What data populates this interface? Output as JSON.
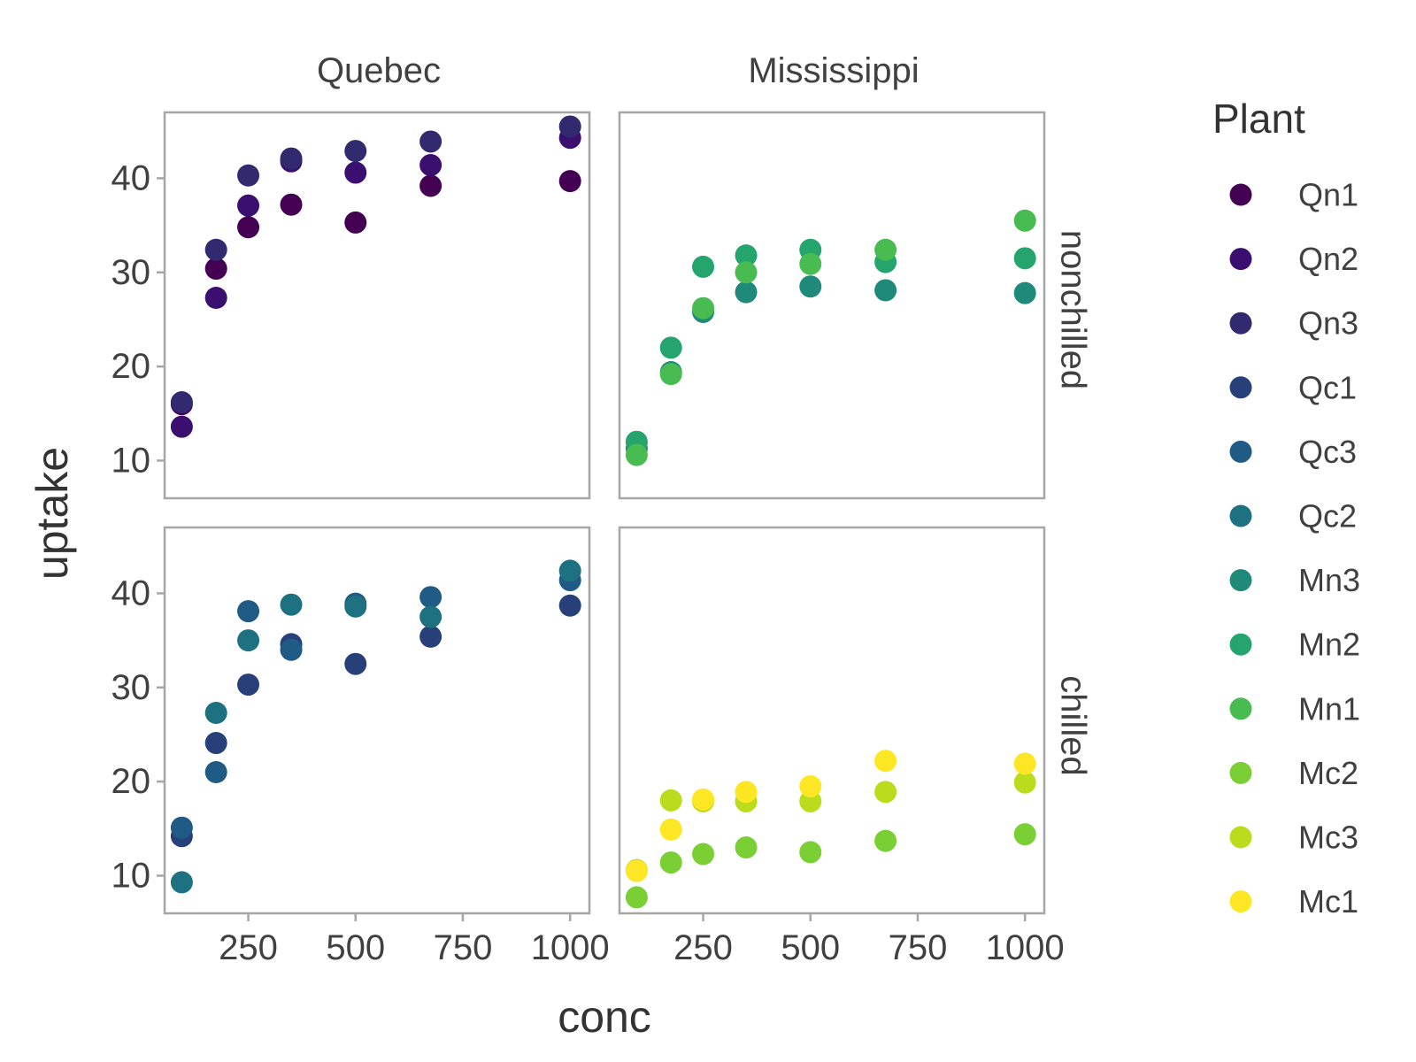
{
  "chart_data": {
    "type": "scatter",
    "xlabel": "conc",
    "ylabel": "uptake",
    "xlim": [
      55,
      1045
    ],
    "ylim": [
      6,
      47
    ],
    "x_ticks": [
      250,
      500,
      750,
      1000
    ],
    "y_ticks": [
      10,
      20,
      30,
      40
    ],
    "facet_columns": [
      "Quebec",
      "Mississippi"
    ],
    "facet_rows": [
      "nonchilled",
      "chilled"
    ],
    "legend_title": "Plant",
    "legend_position": "right",
    "grid": false,
    "x": [
      95,
      175,
      250,
      350,
      500,
      675,
      1000
    ],
    "series": [
      {
        "name": "Qn1",
        "color": "#440154",
        "Type": "Quebec",
        "Treatment": "nonchilled",
        "values": [
          16.0,
          30.4,
          34.8,
          37.2,
          35.3,
          39.2,
          39.7
        ]
      },
      {
        "name": "Qn2",
        "color": "#3B0F70",
        "Type": "Quebec",
        "Treatment": "nonchilled",
        "values": [
          13.6,
          27.3,
          37.1,
          41.8,
          40.6,
          41.4,
          44.3
        ]
      },
      {
        "name": "Qn3",
        "color": "#312A6E",
        "Type": "Quebec",
        "Treatment": "nonchilled",
        "values": [
          16.2,
          32.4,
          40.3,
          42.1,
          42.9,
          43.9,
          45.5
        ]
      },
      {
        "name": "Qc1",
        "color": "#27407A",
        "Type": "Quebec",
        "Treatment": "chilled",
        "values": [
          14.2,
          24.1,
          30.3,
          34.6,
          32.5,
          35.4,
          38.7
        ]
      },
      {
        "name": "Qc3",
        "color": "#1F5B84",
        "Type": "Quebec",
        "Treatment": "chilled",
        "values": [
          15.1,
          21.0,
          38.1,
          34.0,
          38.9,
          39.6,
          41.4
        ]
      },
      {
        "name": "Qc2",
        "color": "#1E7180",
        "Type": "Quebec",
        "Treatment": "chilled",
        "values": [
          9.3,
          27.3,
          35.0,
          38.8,
          38.6,
          37.5,
          42.4
        ]
      },
      {
        "name": "Mn3",
        "color": "#1F8A7A",
        "Type": "Mississippi",
        "Treatment": "nonchilled",
        "values": [
          11.3,
          19.4,
          25.8,
          27.9,
          28.5,
          28.1,
          27.8
        ]
      },
      {
        "name": "Mn2",
        "color": "#25A46D",
        "Type": "Mississippi",
        "Treatment": "nonchilled",
        "values": [
          12.0,
          22.0,
          30.6,
          31.8,
          32.4,
          31.1,
          31.5
        ]
      },
      {
        "name": "Mn1",
        "color": "#48BC50",
        "Type": "Mississippi",
        "Treatment": "nonchilled",
        "values": [
          10.6,
          19.2,
          26.2,
          30.0,
          30.9,
          32.4,
          35.5
        ]
      },
      {
        "name": "Mc2",
        "color": "#79CF34",
        "Type": "Mississippi",
        "Treatment": "chilled",
        "values": [
          7.7,
          11.4,
          12.3,
          13.0,
          12.5,
          13.7,
          14.4
        ]
      },
      {
        "name": "Mc3",
        "color": "#BBDC1C",
        "Type": "Mississippi",
        "Treatment": "chilled",
        "values": [
          10.6,
          18.0,
          17.9,
          17.9,
          17.9,
          18.9,
          19.9
        ]
      },
      {
        "name": "Mc1",
        "color": "#FDE725",
        "Type": "Mississippi",
        "Treatment": "chilled",
        "values": [
          10.5,
          14.9,
          18.1,
          18.9,
          19.5,
          22.2,
          21.9
        ]
      }
    ]
  }
}
